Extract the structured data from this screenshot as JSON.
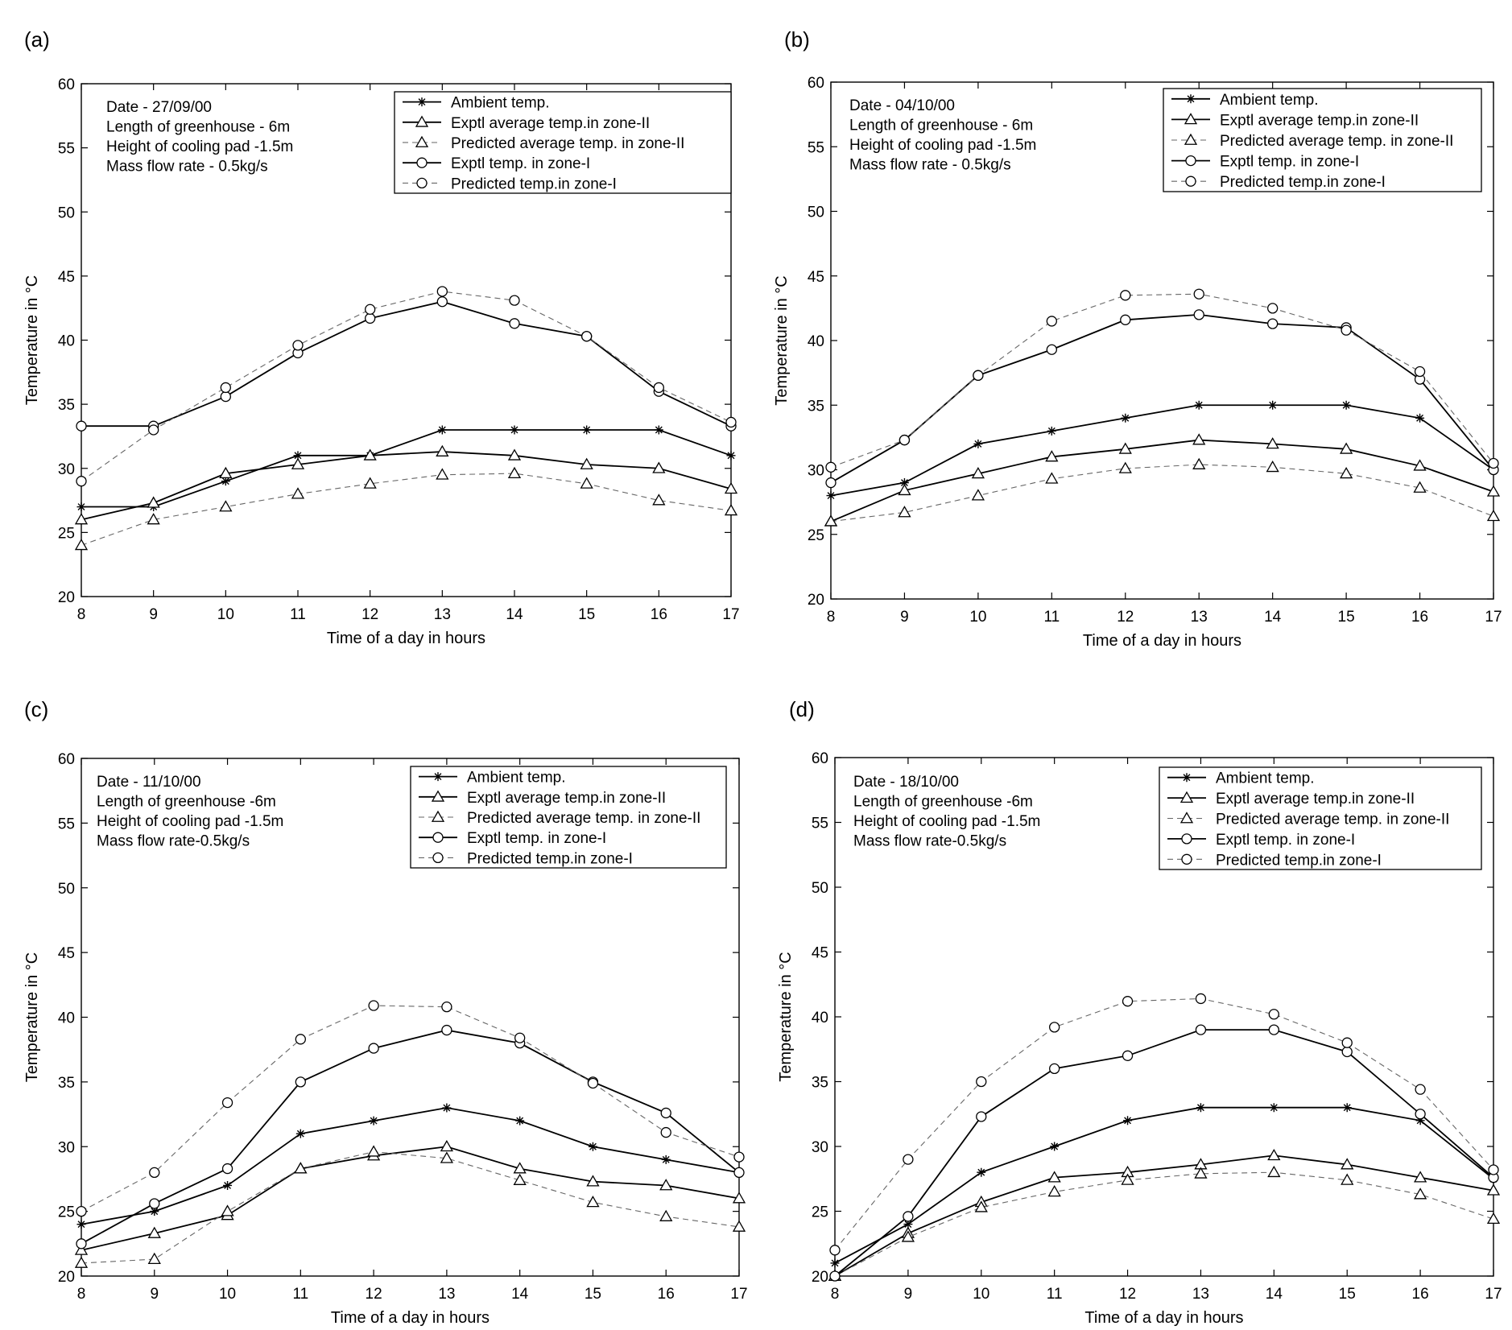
{
  "chart_data": [
    {
      "type": "line",
      "panel_label": "(a)",
      "annotations": [
        "Date - 27/09/00",
        "Length of greenhouse - 6m",
        "Height of cooling pad -1.5m",
        "Mass flow rate - 0.5kg/s"
      ],
      "xlabel": "Time of a day in hours",
      "ylabel": "Temperature in °C",
      "xlim": [
        8,
        17
      ],
      "ylim": [
        20,
        60
      ],
      "xticks": [
        "8",
        "9",
        "10",
        "11",
        "12",
        "13",
        "14",
        "15",
        "16",
        "17"
      ],
      "yticks": [
        "20",
        "25",
        "30",
        "35",
        "40",
        "45",
        "50",
        "55",
        "60"
      ],
      "grid": false,
      "legend_position": "top-right",
      "x": [
        8,
        9,
        10,
        11,
        12,
        13,
        14,
        15,
        16,
        17
      ],
      "series": [
        {
          "name": "Ambient temp.",
          "style": "solid",
          "marker": "star",
          "values": [
            27,
            27,
            29,
            31,
            31,
            33,
            33,
            33,
            33,
            31
          ]
        },
        {
          "name": "Exptl average temp.in zone-II",
          "style": "solid",
          "marker": "triangle",
          "values": [
            26,
            27.3,
            29.6,
            30.3,
            31,
            31.3,
            31,
            30.3,
            30,
            28.4
          ]
        },
        {
          "name": "Predicted average temp. in zone-II",
          "style": "dashed",
          "marker": "triangle",
          "values": [
            24,
            26,
            27,
            28,
            28.8,
            29.5,
            29.6,
            28.8,
            27.5,
            26.7
          ]
        },
        {
          "name": "Exptl temp. in zone-I",
          "style": "solid",
          "marker": "circle",
          "values": [
            33.3,
            33.3,
            35.6,
            39,
            41.7,
            43,
            41.3,
            40.3,
            36,
            33.3
          ]
        },
        {
          "name": "Predicted temp.in zone-I",
          "style": "dashed",
          "marker": "circle",
          "values": [
            29,
            33,
            36.3,
            39.6,
            42.4,
            43.8,
            43.1,
            40.3,
            36.3,
            33.6
          ]
        }
      ]
    },
    {
      "type": "line",
      "panel_label": "(b)",
      "annotations": [
        "Date - 04/10/00",
        "Length of greenhouse - 6m",
        "Height of cooling pad -1.5m",
        "Mass flow rate - 0.5kg/s"
      ],
      "xlabel": "Time of a day in hours",
      "ylabel": "Temperature in °C",
      "xlim": [
        8,
        17
      ],
      "ylim": [
        20,
        60
      ],
      "xticks": [
        "8",
        "9",
        "10",
        "11",
        "12",
        "13",
        "14",
        "15",
        "16",
        "17"
      ],
      "yticks": [
        "20",
        "25",
        "30",
        "35",
        "40",
        "45",
        "50",
        "55",
        "60"
      ],
      "grid": false,
      "legend_position": "top-right",
      "x": [
        8,
        9,
        10,
        11,
        12,
        13,
        14,
        15,
        16,
        17
      ],
      "series": [
        {
          "name": "Ambient temp.",
          "style": "solid",
          "marker": "star",
          "values": [
            28,
            29,
            32,
            33,
            34,
            35,
            35,
            35,
            34,
            30
          ]
        },
        {
          "name": "Exptl average temp.in zone-II",
          "style": "solid",
          "marker": "triangle",
          "values": [
            26,
            28.4,
            29.7,
            31,
            31.6,
            32.3,
            32,
            31.6,
            30.3,
            28.3
          ]
        },
        {
          "name": "Predicted average temp. in zone-II",
          "style": "dashed",
          "marker": "triangle",
          "values": [
            26,
            26.7,
            28,
            29.3,
            30.1,
            30.4,
            30.2,
            29.7,
            28.6,
            26.4
          ]
        },
        {
          "name": "Exptl temp. in zone-I",
          "style": "solid",
          "marker": "circle",
          "values": [
            29,
            32.3,
            37.3,
            39.3,
            41.6,
            42,
            41.3,
            41,
            37,
            30
          ]
        },
        {
          "name": "Predicted temp.in zone-I",
          "style": "dashed",
          "marker": "circle",
          "values": [
            30.2,
            32.3,
            37.3,
            41.5,
            43.5,
            43.6,
            42.5,
            40.8,
            37.6,
            30.5
          ]
        }
      ]
    },
    {
      "type": "line",
      "panel_label": "(c)",
      "annotations": [
        "Date - 11/10/00",
        "Length of greenhouse -6m",
        "Height of cooling pad -1.5m",
        "Mass flow rate-0.5kg/s"
      ],
      "xlabel": "Time of a day in hours",
      "ylabel": "Temperature in °C",
      "xlim": [
        8,
        17
      ],
      "ylim": [
        20,
        60
      ],
      "xticks": [
        "8",
        "9",
        "10",
        "11",
        "12",
        "13",
        "14",
        "15",
        "16",
        "17"
      ],
      "yticks": [
        "20",
        "25",
        "30",
        "35",
        "40",
        "45",
        "50",
        "55",
        "60"
      ],
      "grid": false,
      "legend_position": "top-right",
      "x": [
        8,
        9,
        10,
        11,
        12,
        13,
        14,
        15,
        16,
        17
      ],
      "series": [
        {
          "name": "Ambient temp.",
          "style": "solid",
          "marker": "star",
          "values": [
            24,
            25,
            27,
            31,
            32,
            33,
            32,
            30,
            29,
            28
          ]
        },
        {
          "name": "Exptl average temp.in zone-II",
          "style": "solid",
          "marker": "triangle",
          "values": [
            22,
            23.3,
            24.7,
            28.3,
            29.3,
            30,
            28.3,
            27.3,
            27,
            26
          ]
        },
        {
          "name": "Predicted average temp. in zone-II",
          "style": "dashed",
          "marker": "triangle",
          "values": [
            21,
            21.3,
            25,
            28.3,
            29.6,
            29.1,
            27.4,
            25.7,
            24.6,
            23.8
          ]
        },
        {
          "name": "Exptl temp. in zone-I",
          "style": "solid",
          "marker": "circle",
          "values": [
            22.5,
            25.6,
            28.3,
            35,
            37.6,
            39,
            38,
            35,
            32.6,
            28
          ]
        },
        {
          "name": "Predicted temp.in zone-I",
          "style": "dashed",
          "marker": "circle",
          "values": [
            25,
            28,
            33.4,
            38.3,
            40.9,
            40.8,
            38.4,
            34.9,
            31.1,
            29.2
          ]
        }
      ]
    },
    {
      "type": "line",
      "panel_label": "(d)",
      "annotations": [
        "Date - 18/10/00",
        "Length of greenhouse -6m",
        "Height of cooling pad -1.5m",
        "Mass flow rate-0.5kg/s"
      ],
      "xlabel": "Time of a day in hours",
      "ylabel": "Temperature in °C",
      "xlim": [
        8,
        17
      ],
      "ylim": [
        20,
        60
      ],
      "xticks": [
        "8",
        "9",
        "10",
        "11",
        "12",
        "13",
        "14",
        "15",
        "16",
        "17"
      ],
      "yticks": [
        "20",
        "25",
        "30",
        "35",
        "40",
        "45",
        "50",
        "55",
        "60"
      ],
      "grid": false,
      "legend_position": "top-right",
      "x": [
        8,
        9,
        10,
        11,
        12,
        13,
        14,
        15,
        16,
        17
      ],
      "series": [
        {
          "name": "Ambient temp.",
          "style": "solid",
          "marker": "star",
          "values": [
            21,
            24,
            28,
            30,
            32,
            33,
            33,
            33,
            32,
            27.5
          ]
        },
        {
          "name": "Exptl average temp.in zone-II",
          "style": "solid",
          "marker": "triangle",
          "values": [
            20,
            23.3,
            25.7,
            27.6,
            28,
            28.6,
            29.3,
            28.6,
            27.6,
            26.6
          ]
        },
        {
          "name": "Predicted average temp. in zone-II",
          "style": "dashed",
          "marker": "triangle",
          "values": [
            20,
            23,
            25.3,
            26.5,
            27.4,
            27.9,
            28,
            27.4,
            26.3,
            24.4
          ]
        },
        {
          "name": "Exptl temp. in zone-I",
          "style": "solid",
          "marker": "circle",
          "values": [
            20,
            24.6,
            32.3,
            36,
            37,
            39,
            39,
            37.3,
            32.5,
            27.6
          ]
        },
        {
          "name": "Predicted temp.in zone-I",
          "style": "dashed",
          "marker": "circle",
          "values": [
            22,
            29,
            35,
            39.2,
            41.2,
            41.4,
            40.2,
            38,
            34.4,
            28.2
          ]
        }
      ]
    }
  ]
}
